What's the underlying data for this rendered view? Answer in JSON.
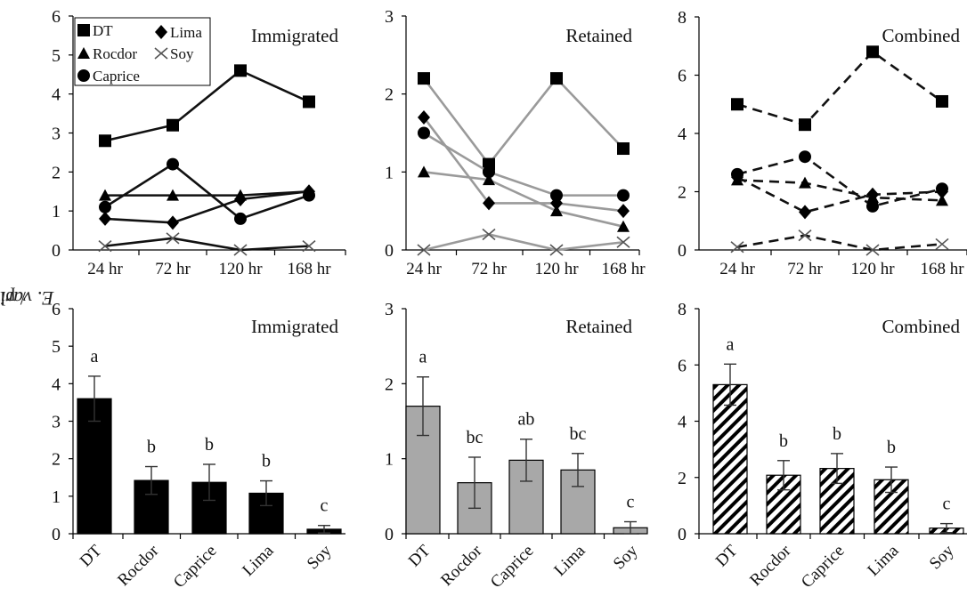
{
  "figure": {
    "ylabel_species": "E. varivestis",
    "ylabel_unit": " / plot"
  },
  "chart_data": [
    {
      "type": "line",
      "title": "Immigrated",
      "categories": [
        "24 hr",
        "72 hr",
        "120 hr",
        "168 hr"
      ],
      "ylim": [
        0,
        6
      ],
      "yticks": [
        0,
        1,
        2,
        3,
        4,
        5,
        6
      ],
      "style": "solid",
      "line_color": "#111111",
      "series": [
        {
          "name": "DT",
          "marker": "square",
          "values": [
            2.8,
            3.2,
            4.6,
            3.8
          ]
        },
        {
          "name": "Lima",
          "marker": "diamond",
          "values": [
            0.8,
            0.7,
            1.3,
            1.5
          ]
        },
        {
          "name": "Rocdor",
          "marker": "triangle",
          "values": [
            1.4,
            1.4,
            1.4,
            1.5
          ]
        },
        {
          "name": "Soy",
          "marker": "x",
          "values": [
            0.1,
            0.3,
            0.0,
            0.1
          ]
        },
        {
          "name": "Caprice",
          "marker": "circle",
          "values": [
            1.1,
            2.2,
            0.8,
            1.4
          ]
        }
      ],
      "legend": "top-left"
    },
    {
      "type": "line",
      "title": "Retained",
      "categories": [
        "24 hr",
        "72 hr",
        "120 hr",
        "168 hr"
      ],
      "ylim": [
        0,
        3
      ],
      "yticks": [
        0,
        1,
        2,
        3
      ],
      "style": "solid",
      "line_color": "#9a9a9a",
      "series": [
        {
          "name": "DT",
          "marker": "square",
          "values": [
            2.2,
            1.1,
            2.2,
            1.3
          ]
        },
        {
          "name": "Lima",
          "marker": "diamond",
          "values": [
            1.7,
            0.6,
            0.6,
            0.5
          ]
        },
        {
          "name": "Rocdor",
          "marker": "triangle",
          "values": [
            1.0,
            0.9,
            0.5,
            0.3
          ]
        },
        {
          "name": "Soy",
          "marker": "x",
          "values": [
            0.0,
            0.2,
            0.0,
            0.1
          ]
        },
        {
          "name": "Caprice",
          "marker": "circle",
          "values": [
            1.5,
            1.0,
            0.7,
            0.7
          ]
        }
      ]
    },
    {
      "type": "line",
      "title": "Combined",
      "categories": [
        "24 hr",
        "72 hr",
        "120 hr",
        "168 hr"
      ],
      "ylim": [
        0,
        8
      ],
      "yticks": [
        0,
        2,
        4,
        6,
        8
      ],
      "style": "dashed",
      "line_color": "#111111",
      "series": [
        {
          "name": "DT",
          "marker": "square",
          "values": [
            5.0,
            4.3,
            6.8,
            5.1
          ]
        },
        {
          "name": "Lima",
          "marker": "diamond",
          "values": [
            2.5,
            1.3,
            1.9,
            2.0
          ]
        },
        {
          "name": "Rocdor",
          "marker": "triangle",
          "values": [
            2.4,
            2.3,
            1.8,
            1.7
          ]
        },
        {
          "name": "Soy",
          "marker": "x",
          "values": [
            0.1,
            0.5,
            0.0,
            0.2
          ]
        },
        {
          "name": "Caprice",
          "marker": "circle",
          "values": [
            2.6,
            3.2,
            1.5,
            2.1
          ]
        }
      ]
    },
    {
      "type": "bar",
      "title": "Immigrated",
      "categories": [
        "DT",
        "Rocdor",
        "Caprice",
        "Lima",
        "Soy"
      ],
      "values": [
        3.6,
        1.42,
        1.37,
        1.08,
        0.12
      ],
      "errors": [
        0.6,
        0.37,
        0.48,
        0.33,
        0.1
      ],
      "letters": [
        "a",
        "b",
        "b",
        "b",
        "c"
      ],
      "ylim": [
        0,
        6
      ],
      "yticks": [
        0,
        1,
        2,
        3,
        4,
        5,
        6
      ],
      "fill": "solid",
      "color": "#000000"
    },
    {
      "type": "bar",
      "title": "Retained",
      "categories": [
        "DT",
        "Rocdor",
        "Caprice",
        "Lima",
        "Soy"
      ],
      "values": [
        1.7,
        0.68,
        0.98,
        0.85,
        0.08
      ],
      "errors": [
        0.39,
        0.34,
        0.28,
        0.22,
        0.08
      ],
      "letters": [
        "a",
        "bc",
        "ab",
        "bc",
        "c"
      ],
      "ylim": [
        0,
        3
      ],
      "yticks": [
        0,
        1,
        2,
        3
      ],
      "fill": "solid",
      "color": "#a8a8a8"
    },
    {
      "type": "bar",
      "title": "Combined",
      "categories": [
        "DT",
        "Rocdor",
        "Caprice",
        "Lima",
        "Soy"
      ],
      "values": [
        5.3,
        2.08,
        2.32,
        1.92,
        0.2
      ],
      "errors": [
        0.73,
        0.52,
        0.53,
        0.45,
        0.16
      ],
      "letters": [
        "a",
        "b",
        "b",
        "b",
        "c"
      ],
      "ylim": [
        0,
        8
      ],
      "yticks": [
        0,
        2,
        4,
        6,
        8
      ],
      "fill": "hatched",
      "color": "#000000"
    }
  ]
}
